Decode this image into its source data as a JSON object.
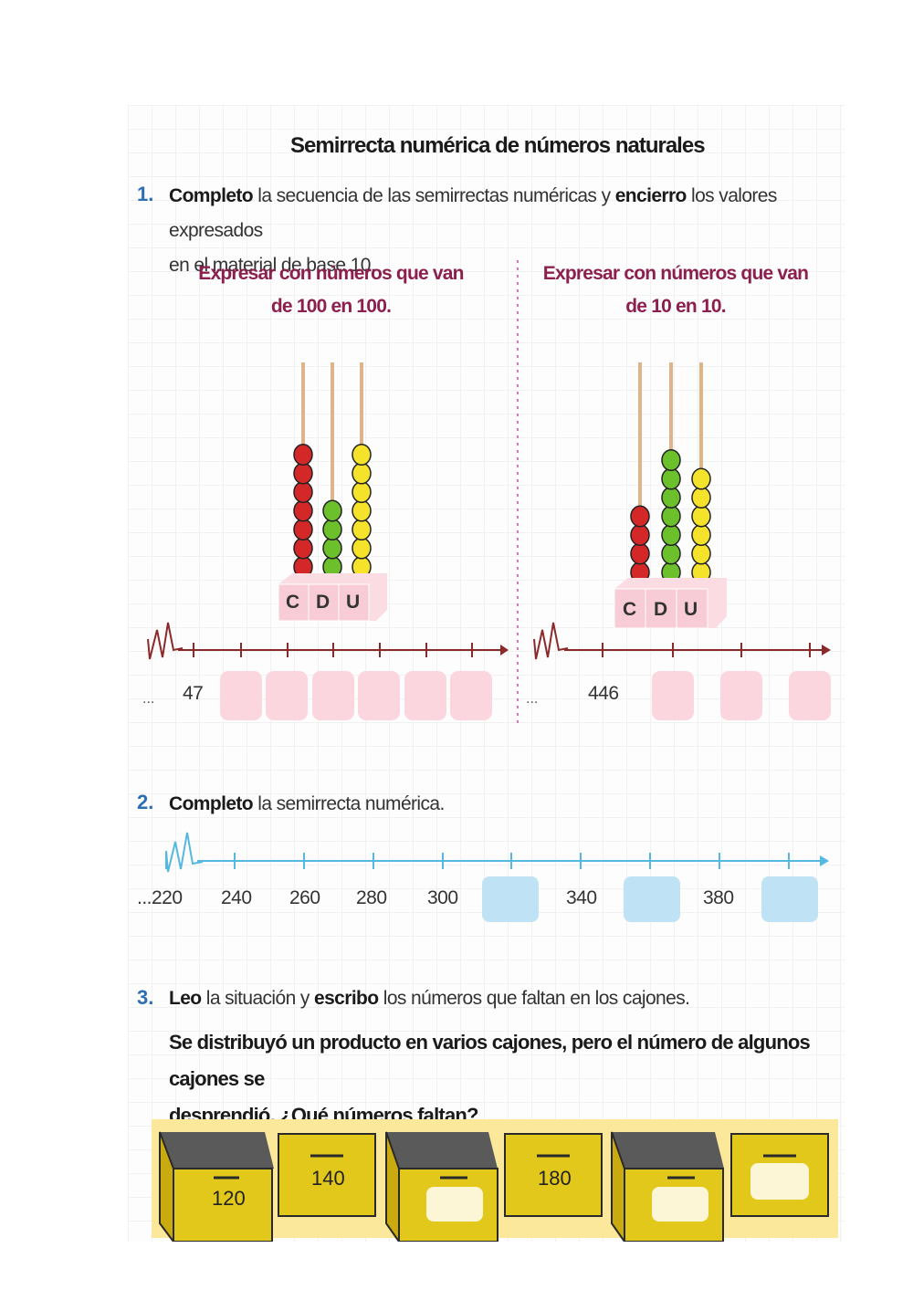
{
  "title": "Semirrecta numérica de números naturales",
  "q1": {
    "number": "1.",
    "bold1": "Completo",
    "text1": " la secuencia de las semirrectas numéricas y ",
    "bold2": "encierro",
    "text2": " los valores expresados",
    "line2": "en el material de base 10.",
    "left": {
      "heading1": "Expresar con números que van",
      "heading2": "de 100 en 100.",
      "abacus_labels": [
        "C",
        "D",
        "U"
      ],
      "beads": {
        "C": 7,
        "D": 4,
        "U": 7
      },
      "start_prefix": "...",
      "start_value": "47"
    },
    "right": {
      "heading1": "Expresar con números que van",
      "heading2": "de 10 en 10.",
      "abacus_labels": [
        "C",
        "D",
        "U"
      ],
      "beads": {
        "C": 4,
        "D": 7,
        "U": 6
      },
      "start_prefix": "...",
      "start_value": "446"
    }
  },
  "q2": {
    "number": "2.",
    "bold": "Completo",
    "text": " la semirrecta numérica.",
    "values": [
      "...220",
      "240",
      "260",
      "280",
      "300",
      "",
      "340",
      "",
      "380",
      ""
    ]
  },
  "q3": {
    "number": "3.",
    "bold1": "Leo",
    "text1": " la situación y ",
    "bold2": "escribo",
    "text2": " los números que faltan en los cajones.",
    "situation1": "Se distribuyó un producto en varios cajones, pero el número de algunos cajones se",
    "situation2": "desprendió. ¿Qué números faltan?",
    "drawers": [
      "120",
      "140",
      "",
      "180",
      "",
      ""
    ]
  },
  "colors": {
    "title_accent": "#2d6fb5",
    "subheading": "#8c1f4d",
    "bead_c": "#d42828",
    "bead_d": "#6cc02c",
    "bead_u": "#f5e22a",
    "pink_box": "#fbd6df",
    "blue_box": "#bfe3f5",
    "drawer": "#e3c81c"
  }
}
